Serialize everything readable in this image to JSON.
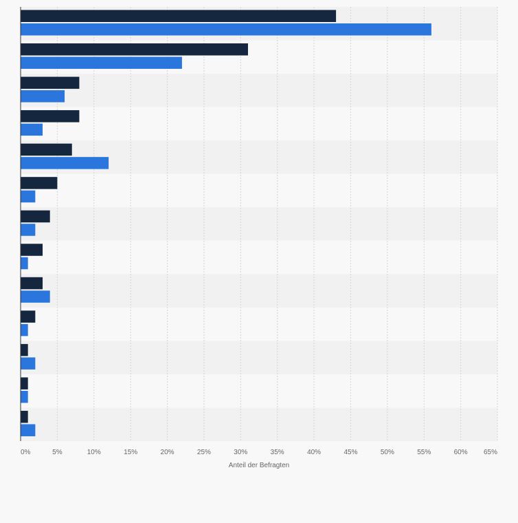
{
  "chart_data": {
    "type": "bar",
    "orientation": "horizontal",
    "xlabel": "Anteil der Befragten",
    "ylabel": "",
    "xlim": [
      0,
      65
    ],
    "tick_values": [
      0,
      5,
      10,
      15,
      20,
      25,
      30,
      35,
      40,
      45,
      50,
      55,
      60,
      65
    ],
    "tick_labels": [
      "0%",
      "5%",
      "10%",
      "15%",
      "20%",
      "25%",
      "30%",
      "35%",
      "40%",
      "45%",
      "50%",
      "55%",
      "60%",
      "65%"
    ],
    "grid": true,
    "series": [
      {
        "color": "#14273f",
        "values": [
          43,
          31,
          8,
          8,
          7,
          5,
          4,
          3,
          3,
          2,
          1,
          1,
          1
        ]
      },
      {
        "color": "#2a76dd",
        "values": [
          56,
          22,
          6,
          3,
          12,
          2,
          2,
          1,
          4,
          1,
          2,
          1,
          2
        ]
      }
    ]
  }
}
